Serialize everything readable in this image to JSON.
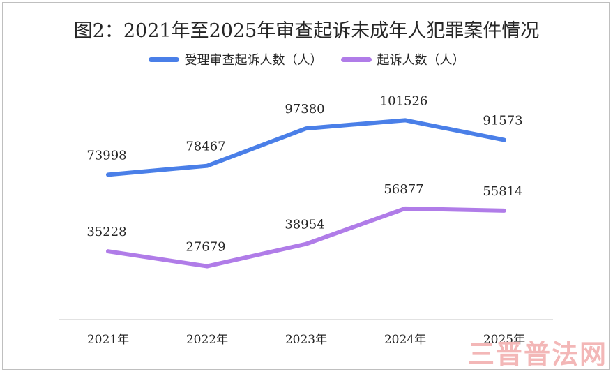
{
  "chart_data": {
    "type": "line",
    "title": "图2：2021年至2025年审查起诉未成年人犯罪案件情况",
    "categories": [
      "2021年",
      "2022年",
      "2023年",
      "2024年",
      "2025年"
    ],
    "series": [
      {
        "name": "受理审查起诉人数（人）",
        "color": "#4a7fe8",
        "values": [
          73998,
          78467,
          97380,
          101526,
          91573
        ]
      },
      {
        "name": "起诉人数（人）",
        "color": "#b07ce8",
        "values": [
          35228,
          27679,
          38954,
          56877,
          55814
        ]
      }
    ],
    "xlabel": "",
    "ylabel": "",
    "grid": false,
    "legend": "top-center",
    "data_labels": true
  },
  "watermark": "三晋普法网"
}
